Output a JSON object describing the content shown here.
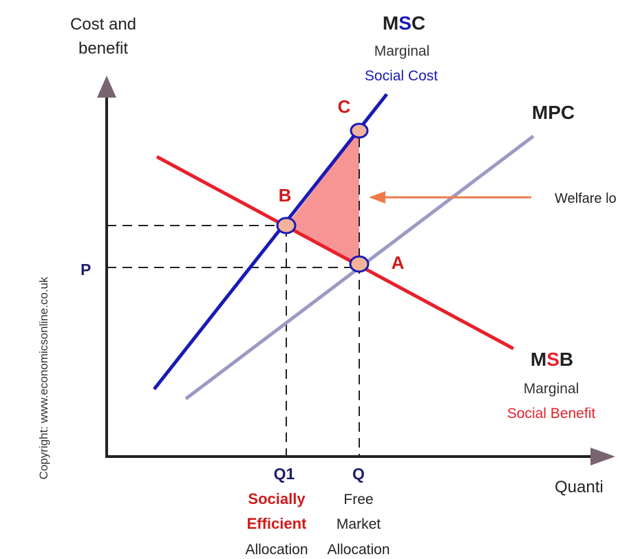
{
  "axes": {
    "y_label_line1": "Cost and",
    "y_label_line2": "benefit",
    "x_label": "Quanti",
    "p_label": "P"
  },
  "curves": {
    "msc": {
      "code_prefix": "M",
      "code_highlight": "S",
      "code_suffix": "C",
      "line1": "Marginal",
      "line2": "Social Cost",
      "color": "#1a1ab5"
    },
    "mpc": {
      "code": "MPC",
      "color": "#9a9ac4"
    },
    "msb": {
      "code_prefix": "M",
      "code_highlight": "S",
      "code_suffix": "B",
      "line1": "Marginal",
      "line2": "Social Benefit",
      "color": "#e8202a"
    }
  },
  "points": {
    "a": "A",
    "b": "B",
    "c": "C"
  },
  "quantities": {
    "q1": {
      "code": "Q1",
      "line1": "Socially",
      "line2": "Efficient",
      "line3": "Allocation"
    },
    "q": {
      "code": "Q",
      "line1": "Free",
      "line2": "Market",
      "line3": "Allocation"
    }
  },
  "annotation": {
    "welfare_label": "Welfare lo",
    "arrow_color": "#f07a4a"
  },
  "triangle_color": "#f79595",
  "copyright": "Copyright: www.economicsonline.co.uk"
}
